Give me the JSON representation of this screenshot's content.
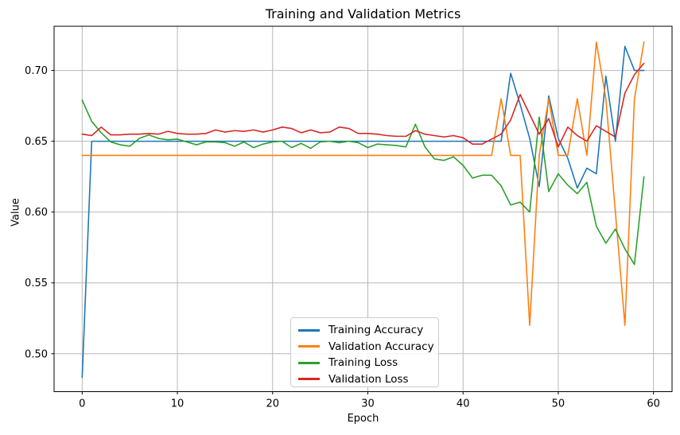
{
  "chart_data": {
    "type": "line",
    "title": "Training and Validation Metrics",
    "xlabel": "Epoch",
    "ylabel": "Value",
    "grid": true,
    "legend_position": "lower center",
    "xlim": [
      -2.95,
      61.95
    ],
    "ylim": [
      0.4732,
      0.7312
    ],
    "xticks": [
      0,
      10,
      20,
      30,
      40,
      50,
      60
    ],
    "yticks": [
      0.5,
      0.55,
      0.6,
      0.65,
      0.7
    ],
    "x": [
      0,
      1,
      2,
      3,
      4,
      5,
      6,
      7,
      8,
      9,
      10,
      11,
      12,
      13,
      14,
      15,
      16,
      17,
      18,
      19,
      20,
      21,
      22,
      23,
      24,
      25,
      26,
      27,
      28,
      29,
      30,
      31,
      32,
      33,
      34,
      35,
      36,
      37,
      38,
      39,
      40,
      41,
      42,
      43,
      44,
      45,
      46,
      47,
      48,
      49,
      50,
      51,
      52,
      53,
      54,
      55,
      56,
      57,
      58,
      59
    ],
    "series": [
      {
        "name": "Training Accuracy",
        "color": "#1f77b4",
        "values": [
          0.4833,
          0.65,
          0.65,
          0.65,
          0.65,
          0.65,
          0.65,
          0.65,
          0.65,
          0.65,
          0.65,
          0.65,
          0.65,
          0.65,
          0.65,
          0.65,
          0.65,
          0.65,
          0.65,
          0.65,
          0.65,
          0.65,
          0.65,
          0.65,
          0.65,
          0.65,
          0.65,
          0.65,
          0.65,
          0.65,
          0.65,
          0.65,
          0.65,
          0.65,
          0.65,
          0.65,
          0.65,
          0.65,
          0.65,
          0.65,
          0.65,
          0.65,
          0.65,
          0.65,
          0.65,
          0.698,
          0.676,
          0.652,
          0.618,
          0.682,
          0.652,
          0.638,
          0.617,
          0.631,
          0.627,
          0.696,
          0.65,
          0.717,
          0.7,
          0.7
        ]
      },
      {
        "name": "Validation Accuracy",
        "color": "#ff7f0e",
        "values": [
          0.64,
          0.64,
          0.64,
          0.64,
          0.64,
          0.64,
          0.64,
          0.64,
          0.64,
          0.64,
          0.64,
          0.64,
          0.64,
          0.64,
          0.64,
          0.64,
          0.64,
          0.64,
          0.64,
          0.64,
          0.64,
          0.64,
          0.64,
          0.64,
          0.64,
          0.64,
          0.64,
          0.64,
          0.64,
          0.64,
          0.64,
          0.64,
          0.64,
          0.64,
          0.64,
          0.64,
          0.64,
          0.64,
          0.64,
          0.64,
          0.64,
          0.64,
          0.64,
          0.64,
          0.68,
          0.64,
          0.64,
          0.52,
          0.64,
          0.68,
          0.64,
          0.64,
          0.68,
          0.64,
          0.72,
          0.68,
          0.6,
          0.52,
          0.68,
          0.72
        ]
      },
      {
        "name": "Training Loss",
        "color": "#2ca02c",
        "values": [
          0.679,
          0.664,
          0.656,
          0.6495,
          0.6475,
          0.6465,
          0.652,
          0.6545,
          0.652,
          0.651,
          0.6515,
          0.6495,
          0.6475,
          0.6495,
          0.6495,
          0.649,
          0.6465,
          0.6495,
          0.6455,
          0.648,
          0.6495,
          0.65,
          0.6455,
          0.6485,
          0.645,
          0.6495,
          0.65,
          0.649,
          0.65,
          0.649,
          0.6455,
          0.648,
          0.6475,
          0.647,
          0.646,
          0.662,
          0.646,
          0.6375,
          0.6365,
          0.639,
          0.633,
          0.624,
          0.626,
          0.626,
          0.6185,
          0.605,
          0.607,
          0.6,
          0.667,
          0.6145,
          0.627,
          0.619,
          0.613,
          0.621,
          0.59,
          0.578,
          0.588,
          0.574,
          0.563,
          0.625
        ]
      },
      {
        "name": "Validation Loss",
        "color": "#d62728",
        "values": [
          0.655,
          0.654,
          0.66,
          0.6545,
          0.6545,
          0.655,
          0.655,
          0.6555,
          0.655,
          0.657,
          0.6555,
          0.655,
          0.655,
          0.6555,
          0.658,
          0.6565,
          0.6575,
          0.657,
          0.658,
          0.6565,
          0.658,
          0.66,
          0.659,
          0.656,
          0.658,
          0.656,
          0.6565,
          0.66,
          0.659,
          0.6555,
          0.6555,
          0.655,
          0.654,
          0.6535,
          0.6535,
          0.6575,
          0.655,
          0.654,
          0.653,
          0.654,
          0.6525,
          0.648,
          0.648,
          0.6515,
          0.655,
          0.665,
          0.683,
          0.669,
          0.655,
          0.666,
          0.646,
          0.66,
          0.654,
          0.65,
          0.661,
          0.657,
          0.653,
          0.684,
          0.697,
          0.705
        ]
      }
    ],
    "style": {
      "grid_color": "#b8b8b8",
      "spine_color": "#000000",
      "tick_label_color": "#000000"
    }
  }
}
